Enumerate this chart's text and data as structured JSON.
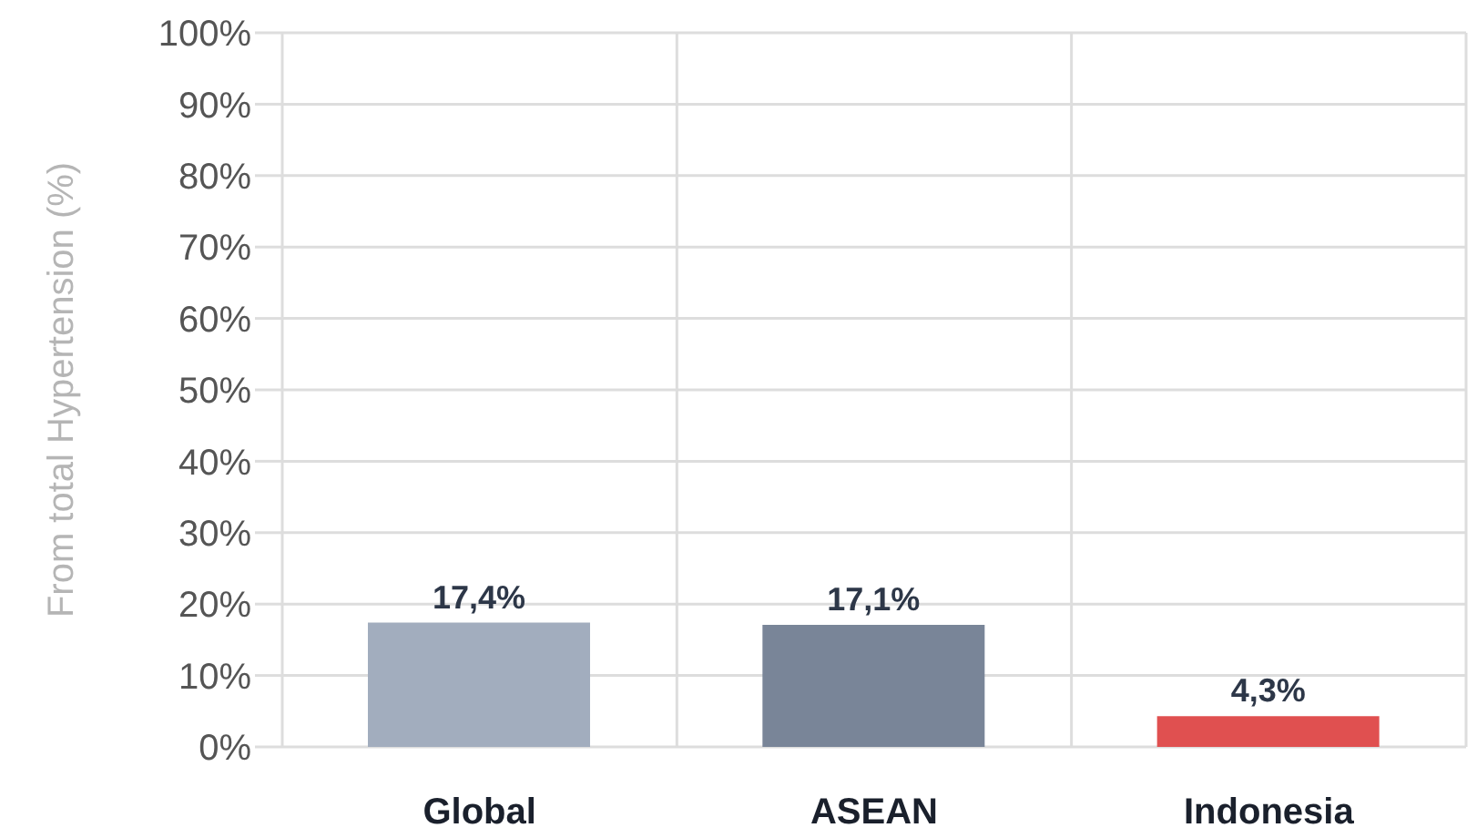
{
  "chart_data": {
    "type": "bar",
    "ylabel": "From total Hypertension (%)",
    "categories": [
      "Global",
      "ASEAN",
      "Indonesia"
    ],
    "values": [
      17.4,
      17.1,
      4.3
    ],
    "colors": [
      "#a2adbe",
      "#798598",
      "#e05050"
    ],
    "value_labels": [
      "17,4%",
      "17,1%",
      "4,3%"
    ],
    "ylim": [
      0,
      100
    ],
    "yticks": [
      {
        "value": 0,
        "label": "0%"
      },
      {
        "value": 10,
        "label": "10%"
      },
      {
        "value": 20,
        "label": "20%"
      },
      {
        "value": 30,
        "label": "30%"
      },
      {
        "value": 40,
        "label": "40%"
      },
      {
        "value": 50,
        "label": "50%"
      },
      {
        "value": 60,
        "label": "60%"
      },
      {
        "value": 70,
        "label": "70%"
      },
      {
        "value": 80,
        "label": "80%"
      },
      {
        "value": 90,
        "label": "90%"
      },
      {
        "value": 100,
        "label": "100%"
      }
    ],
    "grid": true
  }
}
